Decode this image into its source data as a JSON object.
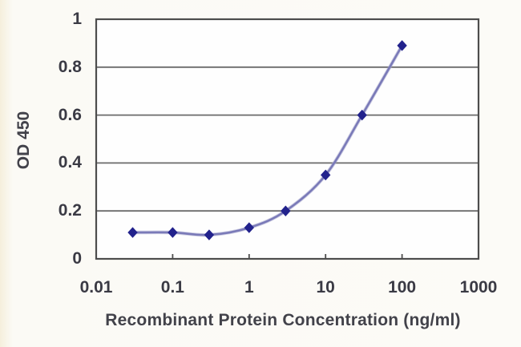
{
  "chart_data": {
    "type": "line",
    "title": "",
    "xlabel": "Recombinant Protein Concentration (ng/ml)",
    "ylabel": "OD 450",
    "x_scale": "log",
    "xlim": [
      0.01,
      1000
    ],
    "ylim": [
      0,
      1
    ],
    "grid": "horizontal",
    "legend": "none",
    "xticks": {
      "values": [
        0.01,
        0.1,
        1,
        10,
        100,
        1000
      ],
      "labels": [
        "0.01",
        "0.1",
        "1",
        "10",
        "100",
        "1000"
      ]
    },
    "yticks": {
      "values": [
        0,
        0.2,
        0.4,
        0.6,
        0.8,
        1
      ],
      "labels": [
        "0",
        "0.2",
        "0.4",
        "0.6",
        "0.8",
        "1"
      ]
    },
    "series": [
      {
        "name": "OD 450",
        "x": [
          0.03,
          0.1,
          0.3,
          1,
          3,
          10,
          30,
          100
        ],
        "y": [
          0.11,
          0.11,
          0.1,
          0.13,
          0.2,
          0.35,
          0.6,
          0.89
        ],
        "marker": "diamond"
      }
    ],
    "colors": {
      "line": "#7a7ab8",
      "marker": "#22228c",
      "grid": "#6b6b6b",
      "axis": "#4d4d4d",
      "tick_text": "#3a3a44",
      "title_text": "#42424a",
      "plot_background": "#fefefe",
      "page_background": "#fcfbf7"
    }
  }
}
